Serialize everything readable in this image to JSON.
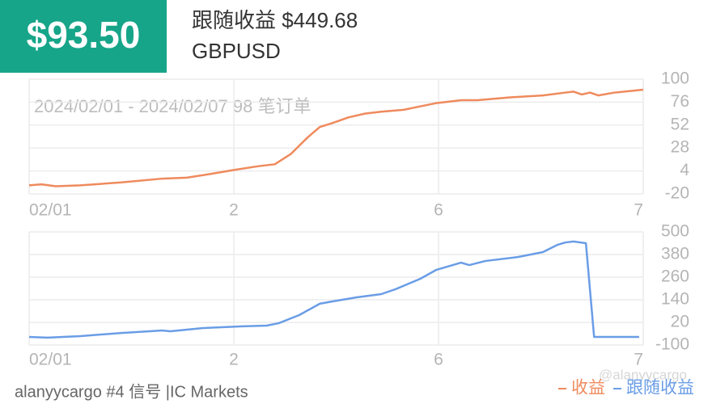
{
  "header": {
    "amount": "$93.50",
    "follow_label": "跟随收益 $449.68",
    "symbol": "GBPUSD"
  },
  "footer": {
    "account": "alanyycargo #4 信号 |IC Markets",
    "watermark": "@alanyycargo"
  },
  "chart_data": [
    {
      "type": "line",
      "subtitle": "2024/02/01 - 2024/02/07 98 笔订单",
      "x": [
        0,
        0.06,
        0.13,
        0.25,
        0.45,
        0.65,
        0.77,
        0.89,
        1.0,
        1.12,
        1.2,
        1.28,
        1.36,
        1.42,
        1.48,
        1.56,
        1.64,
        1.72,
        1.83,
        1.99,
        2.11,
        2.19,
        2.35,
        2.51,
        2.62,
        2.66,
        2.7,
        2.74,
        2.78,
        2.86,
        3.0
      ],
      "series": [
        {
          "name": "收益",
          "color": "#ef8a5d",
          "values": [
            -11,
            -10,
            -12,
            -11,
            -8,
            -4,
            -3,
            1,
            5,
            9,
            11,
            22,
            39,
            50,
            54,
            60,
            64,
            66,
            68,
            75,
            78,
            78,
            81,
            83,
            86,
            87,
            84,
            86,
            83,
            86,
            89
          ]
        }
      ],
      "xlim": [
        0,
        3
      ],
      "xticks": [
        {
          "value": 0,
          "label": "02/01"
        },
        {
          "value": 1,
          "label": "2"
        },
        {
          "value": 2,
          "label": "6"
        },
        {
          "value": 3,
          "label": "7"
        }
      ],
      "ylim": [
        -20,
        100
      ],
      "yticks": [
        -20,
        4,
        28,
        52,
        76,
        100
      ],
      "grid": true
    },
    {
      "type": "line",
      "x": [
        0,
        0.09,
        0.25,
        0.45,
        0.65,
        0.69,
        0.85,
        1.04,
        1.16,
        1.22,
        1.32,
        1.42,
        1.48,
        1.6,
        1.72,
        1.79,
        1.91,
        1.99,
        2.11,
        2.15,
        2.23,
        2.39,
        2.51,
        2.58,
        2.62,
        2.66,
        2.72,
        2.76,
        2.98
      ],
      "series": [
        {
          "name": "跟随收益",
          "color": "#6a9de6",
          "values": [
            -57,
            -61,
            -53,
            -36,
            -23,
            -27,
            -10,
            -1,
            3,
            16,
            59,
            119,
            131,
            153,
            170,
            196,
            251,
            299,
            337,
            324,
            346,
            367,
            393,
            431,
            444,
            449,
            440,
            -57,
            -57
          ]
        }
      ],
      "xlim": [
        0,
        3
      ],
      "xticks": [
        {
          "value": 0,
          "label": "02/01"
        },
        {
          "value": 1,
          "label": "2"
        },
        {
          "value": 2,
          "label": "6"
        },
        {
          "value": 3,
          "label": "7"
        }
      ],
      "ylim": [
        -100,
        500
      ],
      "yticks": [
        -100,
        20,
        140,
        260,
        380,
        500
      ],
      "grid": true
    }
  ]
}
